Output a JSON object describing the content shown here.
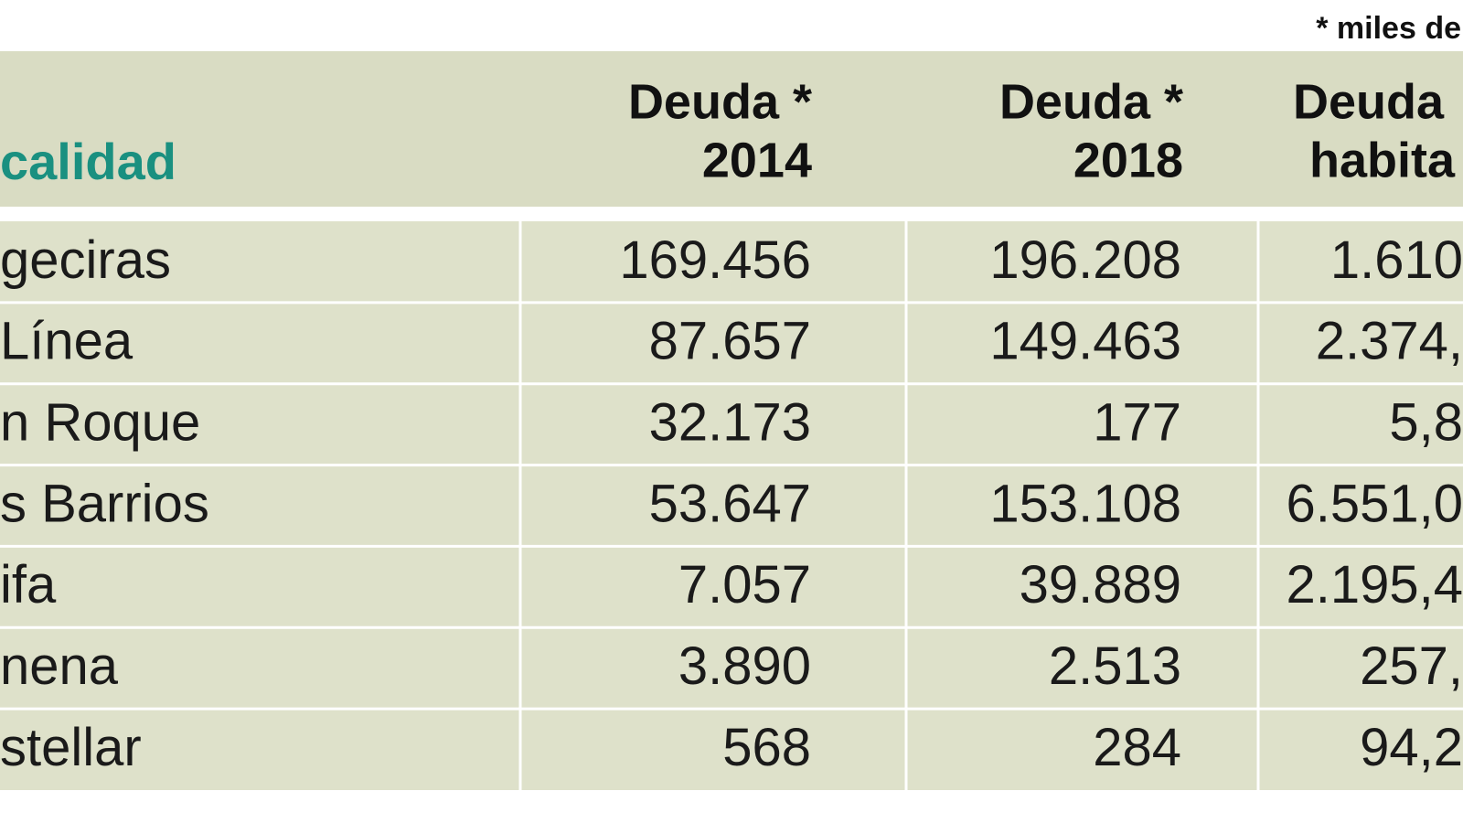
{
  "note": "* miles de",
  "header": {
    "columns": [
      [
        "calidad"
      ],
      [
        "Deuda *",
        "2014"
      ],
      [
        "Deuda *",
        "2018"
      ],
      [
        "Deuda",
        "habita"
      ]
    ]
  },
  "table": {
    "rows": [
      [
        "geciras",
        "169.456",
        "196.208",
        "1.610"
      ],
      [
        "Línea",
        "87.657",
        "149.463",
        "2.374,"
      ],
      [
        "n Roque",
        "32.173",
        "177",
        "5,8"
      ],
      [
        "s Barrios",
        "53.647",
        "153.108",
        "6.551,0"
      ],
      [
        "ifa",
        "7.057",
        "39.889",
        "2.195,4"
      ],
      [
        "nena",
        "3.890",
        "2.513",
        "257,"
      ],
      [
        "stellar",
        "568",
        "284",
        "94,2"
      ]
    ]
  }
}
